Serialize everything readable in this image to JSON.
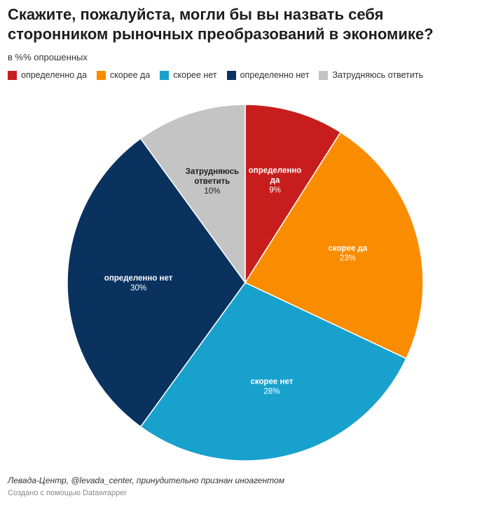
{
  "title": "Скажите, пожалуйста, могли бы вы назвать себя сторонником рыночных преобразований в экономике?",
  "subtitle": "в %% опрошенных",
  "source": "Левада-Центр, @levada_center, принудительно признан иноагентом",
  "credit": "Создано с помощью Datawrapper",
  "chart_data": {
    "type": "pie",
    "title": "Скажите, пожалуйста, могли бы вы назвать себя сторонником рыночных преобразований в экономике?",
    "unit": "%",
    "legend_position": "top-left",
    "slices": [
      {
        "label": "определенно да",
        "chart_label": [
          "определенно",
          "да"
        ],
        "value": 9,
        "display": "9%",
        "color": "#c71e1d",
        "text_color": "#ffffff"
      },
      {
        "label": "скорее да",
        "chart_label": [
          "скорее да"
        ],
        "value": 23,
        "display": "23%",
        "color": "#fa8c00",
        "text_color": "#ffffff"
      },
      {
        "label": "скорее нет",
        "chart_label": [
          "скорее нет"
        ],
        "value": 28,
        "display": "28%",
        "color": "#18a1cd",
        "text_color": "#ffffff"
      },
      {
        "label": "определенно нет",
        "chart_label": [
          "определенно нет"
        ],
        "value": 30,
        "display": "30%",
        "color": "#09325f",
        "text_color": "#ffffff"
      },
      {
        "label": "Затрудняюсь ответить",
        "chart_label": [
          "Затрудняюсь",
          "ответить"
        ],
        "value": 10,
        "display": "10%",
        "color": "#c4c4c4",
        "text_color": "#1d1d1d"
      }
    ]
  }
}
